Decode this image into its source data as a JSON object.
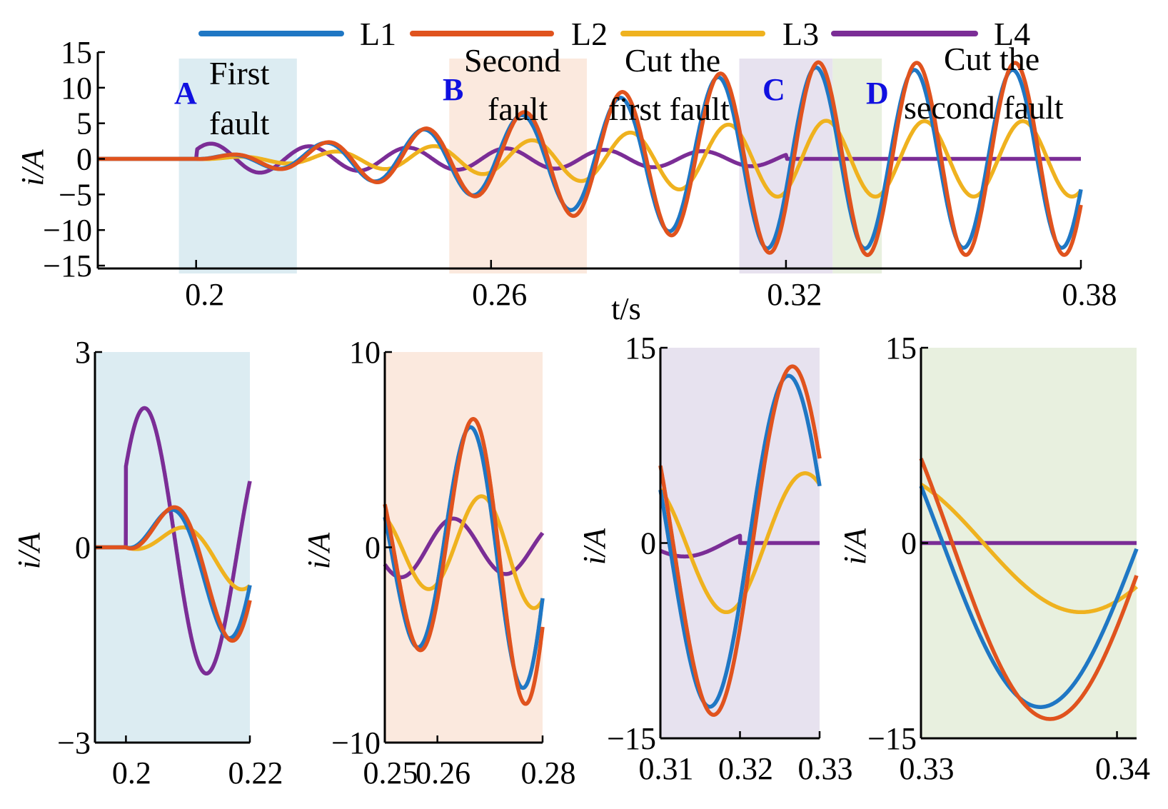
{
  "chart_data": {
    "type": "line",
    "legend": [
      "L1",
      "L2",
      "L3",
      "L4"
    ],
    "legend_position": "top",
    "colors": {
      "L1": "#1f77c4",
      "L2": "#e0531e",
      "L3": "#efb21f",
      "L4": "#7b2d96"
    },
    "main": {
      "xlabel": "t/s",
      "ylabel": "i/A",
      "xlim": [
        0.18,
        0.38
      ],
      "ylim": [
        -15,
        15
      ],
      "xticks": [
        "0.2",
        "0.26",
        "0.32",
        "0.38"
      ],
      "yticks": [
        "15",
        "10",
        "5",
        "0",
        "−5",
        "−10",
        "−15"
      ],
      "regions": [
        {
          "letter": "A",
          "line1": "First",
          "line2": "fault",
          "start": 0.1965,
          "end": 0.2205,
          "color": "#dcecf2"
        },
        {
          "letter": "B",
          "line1": "Second",
          "line2": "fault",
          "start": 0.2515,
          "end": 0.2795,
          "color": "#fbe9de"
        },
        {
          "letter": "",
          "line1": "Cut the",
          "line2": "first fault",
          "start": null,
          "end": null,
          "color": ""
        },
        {
          "letter": "C",
          "line1": "",
          "line2": "",
          "start": 0.3105,
          "end": 0.3295,
          "color": "#e7e2ef"
        },
        {
          "letter": "D",
          "line1": "Cut the",
          "line2": "second fault",
          "start": 0.3295,
          "end": 0.3395,
          "color": "#e8f0df"
        }
      ]
    },
    "zooms": [
      {
        "xlim": [
          0.195,
          0.22
        ],
        "ylim": [
          -3,
          3
        ],
        "xticks": [
          "0.2",
          "0.22"
        ],
        "xtick_values": [
          0.2,
          0.22
        ],
        "yticks": [
          "3",
          "0",
          "−3"
        ],
        "ylabel": "i/A",
        "bg": "#dcecf2"
      },
      {
        "xlim": [
          0.25,
          0.28
        ],
        "ylim": [
          -10,
          10
        ],
        "xticks": [
          "0.25",
          "0.26",
          "0.28"
        ],
        "xtick_values": [
          0.25,
          0.26,
          0.28
        ],
        "yticks": [
          "10",
          "0",
          "−10"
        ],
        "ylabel": "i/A",
        "bg": "#fbe9de"
      },
      {
        "xlim": [
          0.31,
          0.33
        ],
        "ylim": [
          -15,
          15
        ],
        "xticks": [
          "0.31",
          "0.32",
          "0.33"
        ],
        "xtick_values": [
          0.31,
          0.32,
          0.33
        ],
        "yticks": [
          "15",
          "0",
          "−15"
        ],
        "ylabel": "i/A",
        "bg": "#e7e2ef"
      },
      {
        "xlim": [
          0.33,
          0.341
        ],
        "ylim": [
          -15,
          15
        ],
        "xticks": [
          "0.33",
          "0.34"
        ],
        "xtick_values": [
          0.33,
          0.34
        ],
        "yticks": [
          "15",
          "0",
          "−15"
        ],
        "ylabel": "i/A",
        "bg": "#e8f0df"
      }
    ],
    "series_model": {
      "fault1_time": 0.2,
      "fault2_time": 0.26,
      "cut_first_fault_time": 0.32,
      "frequency_hz": 50,
      "L1_peak_values": [
        0,
        1.7,
        3.5,
        5.5,
        7.6,
        10.8,
        13,
        12.5,
        12.5
      ],
      "L2_peak_values": [
        0,
        1.7,
        3.6,
        5.6,
        8.5,
        11.2,
        13.6,
        13.5,
        13.5
      ],
      "L3_peak_values": [
        0,
        0.7,
        1.5,
        2.2,
        3.2,
        4.4,
        5.4,
        5.3,
        5.3
      ],
      "L4_peak_values": [
        2.2,
        1.8,
        1.6,
        1.5,
        1.3,
        1.1,
        1.0,
        0,
        0
      ]
    }
  }
}
